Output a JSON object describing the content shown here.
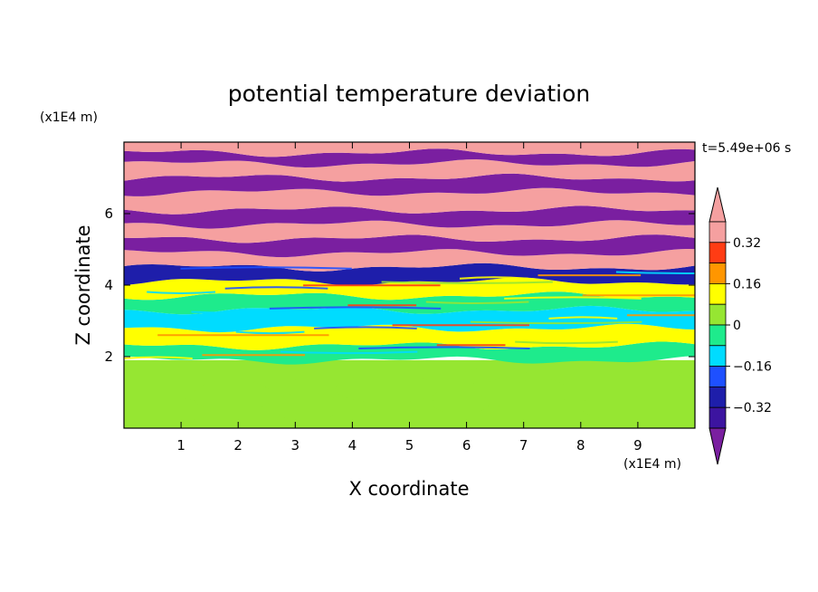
{
  "chart_data": {
    "type": "heatmap",
    "title": "potential temperature deviation",
    "xlabel": "X coordinate",
    "ylabel": "Z coordinate",
    "x_unit_label": "(x1E4 m)",
    "y_unit_label": "(x1E4 m)",
    "time_label": "t=5.49e+06 s",
    "xlim": [
      0,
      10
    ],
    "ylim": [
      0,
      8
    ],
    "x_ticks": [
      1,
      2,
      3,
      4,
      5,
      6,
      7,
      8,
      9
    ],
    "y_ticks": [
      2,
      4,
      6
    ],
    "colorbar": {
      "levels": [
        -0.4,
        -0.32,
        -0.24,
        -0.16,
        -0.08,
        0,
        0.08,
        0.16,
        0.24,
        0.32,
        0.4
      ],
      "tick_labels": [
        "0.32",
        "0.16",
        "0",
        "−0.16",
        "−0.32"
      ],
      "tick_values": [
        0.32,
        0.16,
        0,
        -0.16,
        -0.32
      ],
      "colors_low_to_high": [
        "#7a1fa0",
        "#3c14a0",
        "#1e1eaa",
        "#1e50ff",
        "#00dcff",
        "#1eeb8c",
        "#96e632",
        "#ffff00",
        "#ff9600",
        "#ff3c14",
        "#f5a0a0",
        "#f5a0a0"
      ]
    },
    "bands": [
      {
        "z": [
          0.0,
          1.9
        ],
        "value": 0.0
      },
      {
        "z": [
          1.9,
          2.3
        ],
        "value": -0.05
      },
      {
        "z": [
          2.3,
          2.8
        ],
        "value": 0.08
      },
      {
        "z": [
          2.8,
          3.3
        ],
        "value": -0.12
      },
      {
        "z": [
          3.3,
          3.7
        ],
        "value": -0.08
      },
      {
        "z": [
          3.7,
          4.1
        ],
        "value": 0.12
      },
      {
        "z": [
          4.1,
          4.5
        ],
        "value": -0.3
      },
      {
        "z": [
          4.5,
          4.9
        ],
        "value": 0.42
      },
      {
        "z": [
          4.9,
          5.3
        ],
        "value": -0.42
      },
      {
        "z": [
          5.3,
          5.7
        ],
        "value": 0.42
      },
      {
        "z": [
          5.7,
          6.1
        ],
        "value": -0.42
      },
      {
        "z": [
          6.1,
          6.6
        ],
        "value": 0.42
      },
      {
        "z": [
          6.6,
          7.0
        ],
        "value": -0.42
      },
      {
        "z": [
          7.0,
          7.4
        ],
        "value": 0.42
      },
      {
        "z": [
          7.4,
          7.7
        ],
        "value": -0.42
      },
      {
        "z": [
          7.7,
          8.0
        ],
        "value": 0.42
      }
    ]
  }
}
